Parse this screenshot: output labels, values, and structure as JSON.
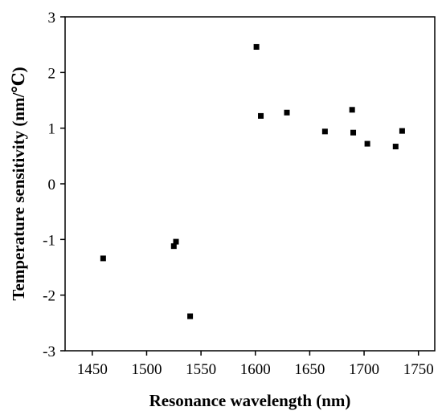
{
  "chart_data": {
    "type": "scatter",
    "title": "",
    "xlabel": "Resonance wavelength (nm)",
    "ylabel": "Temperature sensitivity (nm/℃)",
    "xlim": [
      1425,
      1765
    ],
    "ylim": [
      -3,
      3
    ],
    "x_ticks": [
      1450,
      1500,
      1550,
      1600,
      1650,
      1700,
      1750
    ],
    "y_ticks": [
      -3,
      -2,
      -1,
      0,
      1,
      2,
      3
    ],
    "grid": false,
    "legend": "none",
    "marker": "square",
    "color": "#000000",
    "series": [
      {
        "points": [
          {
            "x": 1460,
            "y": -1.34
          },
          {
            "x": 1525,
            "y": -1.12
          },
          {
            "x": 1527,
            "y": -1.04
          },
          {
            "x": 1540,
            "y": -2.38
          },
          {
            "x": 1601,
            "y": 2.46
          },
          {
            "x": 1605,
            "y": 1.22
          },
          {
            "x": 1629,
            "y": 1.28
          },
          {
            "x": 1664,
            "y": 0.94
          },
          {
            "x": 1689,
            "y": 1.33
          },
          {
            "x": 1690,
            "y": 0.92
          },
          {
            "x": 1703,
            "y": 0.72
          },
          {
            "x": 1729,
            "y": 0.67
          },
          {
            "x": 1735,
            "y": 0.95
          }
        ]
      }
    ]
  }
}
